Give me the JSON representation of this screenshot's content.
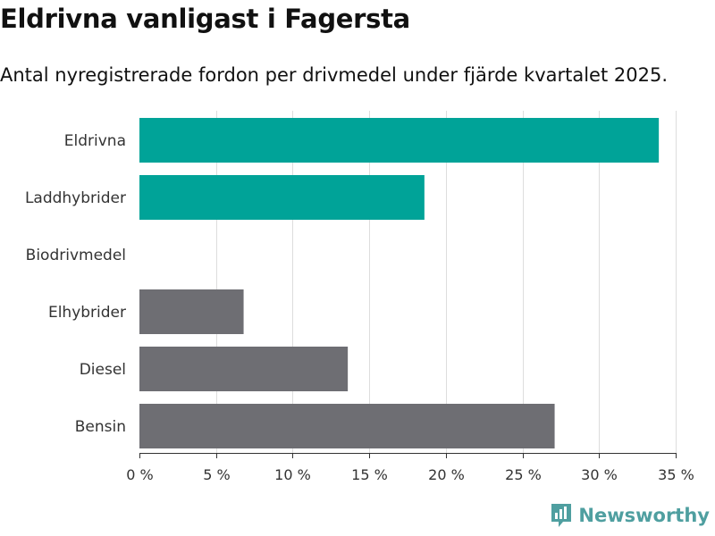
{
  "title": "Eldrivna vanligast i Fagersta",
  "subtitle": "Antal nyregistrerade fordon per drivmedel under fjärde kvartalet 2025.",
  "brand": "Newsworthy",
  "colors": {
    "highlight": "#00a398",
    "other": "#6e6e73",
    "brand": "#4f9fa0"
  },
  "chart_data": {
    "type": "bar",
    "orientation": "horizontal",
    "categories": [
      "Eldrivna",
      "Laddhybrider",
      "Biodrivmedel",
      "Elhybrider",
      "Diesel",
      "Bensin"
    ],
    "values": [
      33.9,
      18.6,
      0,
      6.8,
      13.6,
      27.1
    ],
    "highlight": [
      true,
      true,
      true,
      false,
      false,
      false
    ],
    "xlim": [
      0,
      35
    ],
    "xticks": [
      0,
      5,
      10,
      15,
      20,
      25,
      30,
      35
    ],
    "xtick_labels": [
      "0 %",
      "5 %",
      "10 %",
      "15 %",
      "20 %",
      "25 %",
      "30 %",
      "35 %"
    ],
    "title": "Eldrivna vanligast i Fagersta",
    "xlabel": "",
    "ylabel": "",
    "grid": true
  }
}
